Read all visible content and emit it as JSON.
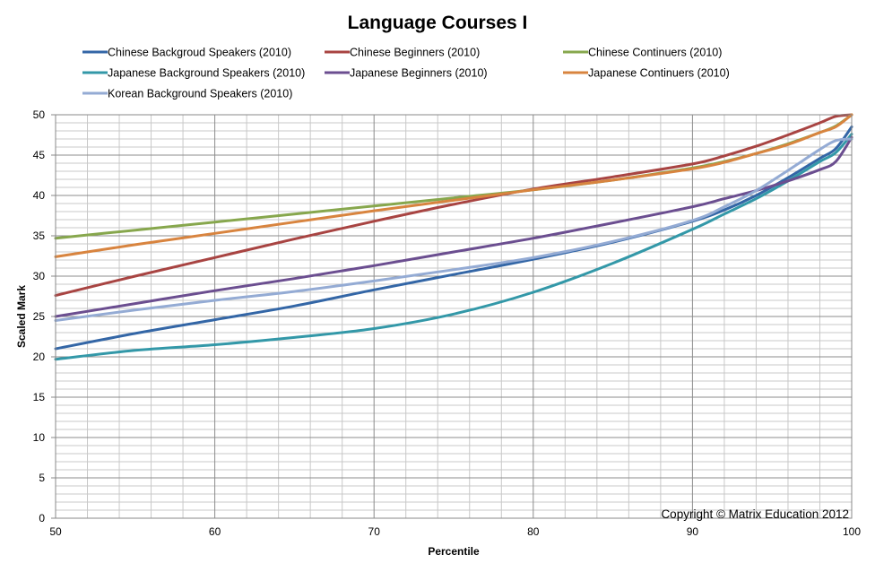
{
  "chart_data": {
    "type": "line",
    "title": "Language Courses I",
    "xlabel": "Percentile",
    "ylabel": "Scaled Mark",
    "xlim": [
      50,
      100
    ],
    "ylim": [
      0,
      50
    ],
    "x_ticks": [
      "50",
      "60",
      "70",
      "80",
      "90",
      "100"
    ],
    "y_ticks": [
      "0",
      "5",
      "10",
      "15",
      "20",
      "25",
      "30",
      "35",
      "40",
      "45",
      "50"
    ],
    "grid": true,
    "legend_position": "top",
    "x": [
      50,
      55,
      60,
      65,
      70,
      75,
      80,
      85,
      90,
      92,
      94,
      96,
      98,
      99,
      100
    ],
    "series": [
      {
        "name": "Chinese Backgroud Speakers (2010)",
        "color": "#3366a6",
        "values": [
          21.0,
          22.9,
          24.6,
          26.3,
          28.3,
          30.2,
          32.1,
          34.2,
          36.8,
          38.2,
          40.0,
          42.2,
          44.6,
          45.8,
          48.5
        ]
      },
      {
        "name": "Chinese Beginners (2010)",
        "color": "#a84442",
        "values": [
          27.6,
          30.0,
          32.3,
          34.6,
          36.8,
          38.9,
          40.8,
          42.3,
          43.9,
          44.9,
          46.1,
          47.5,
          49.0,
          49.8,
          50.0
        ]
      },
      {
        "name": "Chinese Continuers (2010)",
        "color": "#87a74d",
        "values": [
          34.7,
          35.7,
          36.7,
          37.7,
          38.7,
          39.7,
          40.7,
          41.9,
          43.4,
          44.2,
          45.2,
          46.4,
          47.8,
          48.6,
          50.0
        ]
      },
      {
        "name": "Japanese Background Speakers (2010)",
        "color": "#3398a8",
        "values": [
          19.7,
          20.8,
          21.5,
          22.4,
          23.5,
          25.3,
          28.0,
          31.6,
          35.8,
          37.7,
          39.6,
          41.8,
          44.2,
          45.3,
          47.6
        ]
      },
      {
        "name": "Japanese Beginners (2010)",
        "color": "#6b4e90",
        "values": [
          25.0,
          26.6,
          28.2,
          29.7,
          31.3,
          33.0,
          34.7,
          36.6,
          38.6,
          39.6,
          40.6,
          41.8,
          43.2,
          44.2,
          47.2
        ]
      },
      {
        "name": "Japanese Continuers (2010)",
        "color": "#d8843f",
        "values": [
          32.4,
          33.9,
          35.3,
          36.7,
          38.1,
          39.4,
          40.7,
          41.9,
          43.3,
          44.1,
          45.2,
          46.3,
          47.8,
          48.5,
          50.0
        ]
      },
      {
        "name": "Korean Background Speakers (2010)",
        "color": "#94abd4",
        "values": [
          24.5,
          25.8,
          27.0,
          28.1,
          29.4,
          30.8,
          32.3,
          34.3,
          36.9,
          38.6,
          40.6,
          43.1,
          45.7,
          46.8,
          47.0
        ]
      }
    ],
    "annotations": [
      "Copyright © Matrix Education 2012"
    ]
  }
}
